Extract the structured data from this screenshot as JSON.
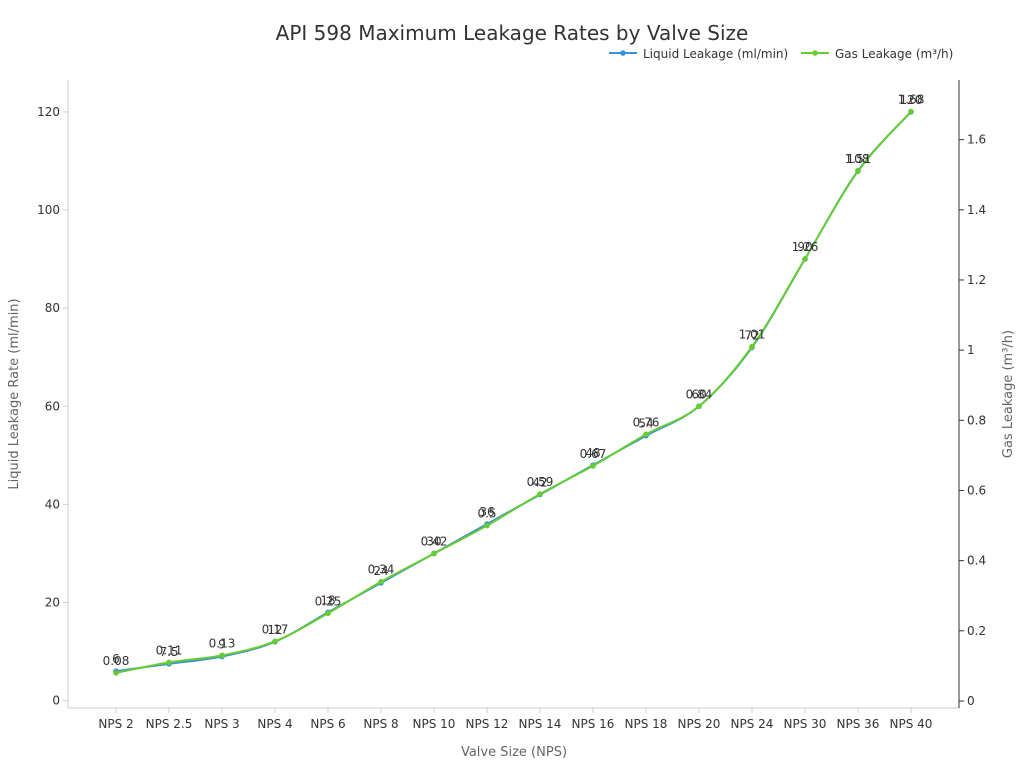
{
  "chart_data": {
    "type": "line",
    "title": "API 598 Maximum Leakage Rates by Valve Size",
    "xlabel": "Valve Size (NPS)",
    "ylabel": "Liquid Leakage Rate (ml/min)",
    "y2label": "Gas Leakage (m³/h)",
    "categories": [
      "NPS 2",
      "NPS 2.5",
      "NPS 3",
      "NPS 4",
      "NPS 6",
      "NPS 8",
      "NPS 10",
      "NPS 12",
      "NPS 14",
      "NPS 16",
      "NPS 18",
      "NPS 20",
      "NPS 24",
      "NPS 30",
      "NPS 36",
      "NPS 40"
    ],
    "ylim": [
      -1.5,
      126.5
    ],
    "y_ticks": [
      0,
      20,
      40,
      60,
      80,
      100,
      120
    ],
    "y2lim": [
      -0.02,
      1.77
    ],
    "y2_ticks": [
      0,
      0.2,
      0.4,
      0.6,
      0.8,
      1,
      1.2,
      1.4,
      1.6
    ],
    "legend_position": "top-right",
    "grid": false,
    "series": [
      {
        "name": "Liquid Leakage (ml/min)",
        "axis": "left",
        "color": "#3a8fd9",
        "values": [
          6,
          7.5,
          9,
          12,
          18,
          24,
          30,
          36,
          42,
          48,
          54,
          60,
          72,
          90,
          108,
          120
        ],
        "labels": [
          "6",
          "7.5",
          "9",
          "12",
          "18",
          "24",
          "30",
          "36",
          "42",
          "48",
          "54",
          "60",
          "72",
          "90",
          "108",
          "120"
        ]
      },
      {
        "name": "Gas Leakage (m³/h)",
        "axis": "right",
        "color": "#66cc33",
        "values": [
          0.08,
          0.11,
          0.13,
          0.17,
          0.25,
          0.34,
          0.42,
          0.5,
          0.59,
          0.67,
          0.76,
          0.84,
          1.01,
          1.26,
          1.51,
          1.68
        ],
        "labels": [
          "0.08",
          "0.11",
          "0.13",
          "0.17",
          "0.25",
          "0.34",
          "0.42",
          "0.5",
          "0.59",
          "0.67",
          "0.76",
          "0.84",
          "1.01",
          "1.26",
          "1.51",
          "1.68"
        ]
      }
    ]
  }
}
